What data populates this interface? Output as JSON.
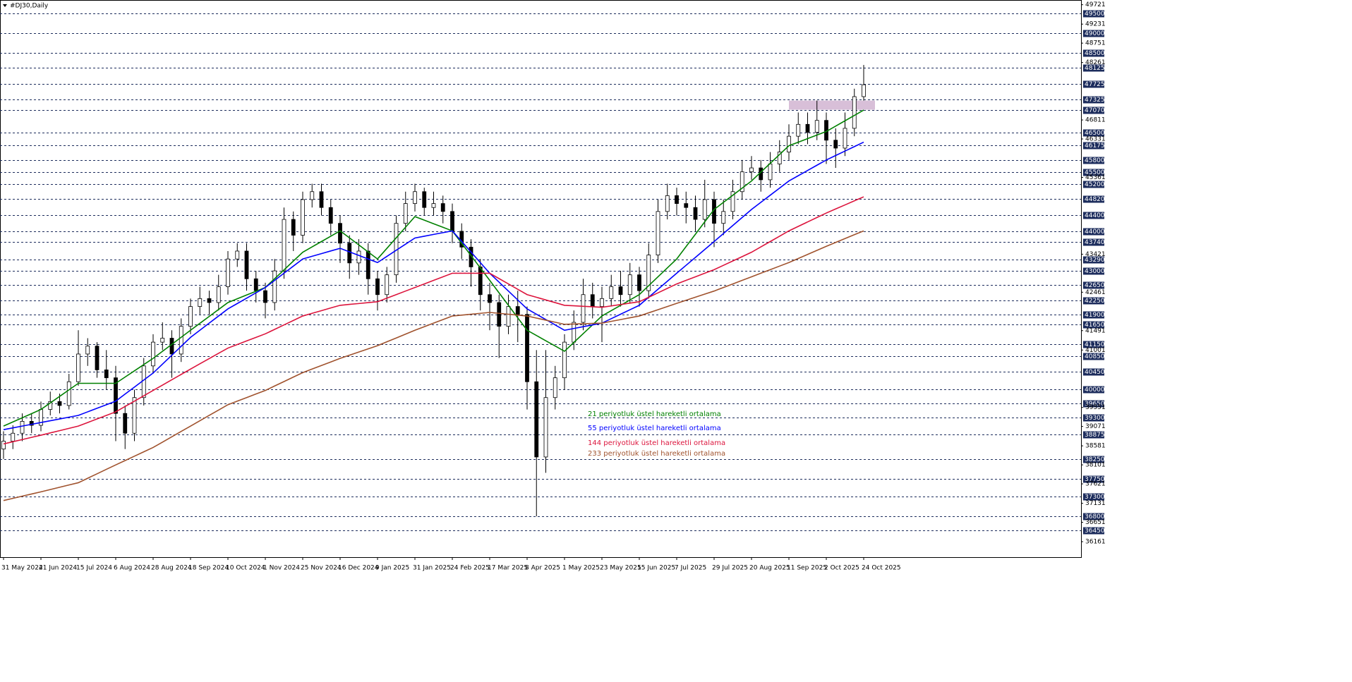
{
  "chart_data": {
    "type": "candlestick",
    "title": "#DJ30,Daily",
    "categories": [
      "31 May 2024",
      null,
      null,
      null,
      "21 Jun 2024",
      null,
      null,
      null,
      "15 Jul 2024",
      null,
      null,
      null,
      "6 Aug 2024",
      null,
      null,
      null,
      "28 Aug 2024",
      null,
      null,
      null,
      "18 Sep 2024",
      null,
      null,
      null,
      "10 Oct 2024",
      null,
      null,
      null,
      "1 Nov 2024",
      null,
      null,
      null,
      "25 Nov 2024",
      null,
      null,
      null,
      "16 Dec 2024",
      null,
      null,
      null,
      "9 Jan 2025",
      null,
      null,
      null,
      "31 Jan 2025",
      null,
      null,
      null,
      "24 Feb 2025",
      null,
      null,
      null,
      "17 Mar 2025",
      null,
      null,
      null,
      "8 Apr 2025",
      null,
      null,
      null,
      "1 May 2025",
      null,
      null,
      null,
      "23 May 2025",
      null,
      null,
      null,
      "15 Jun 2025",
      null,
      null,
      null,
      "7 Jul 2025",
      null,
      null,
      null,
      "29 Jul 2025",
      null,
      null,
      null,
      "20 Aug 2025",
      null,
      null,
      null,
      "11 Sep 2025",
      null,
      null,
      null,
      "2 Oct 2025",
      null,
      null,
      null,
      "24 Oct 2025"
    ],
    "open": [
      38500,
      38700,
      38900,
      39200,
      39100,
      39500,
      39700,
      39600,
      40200,
      40900,
      41100,
      40500,
      40300,
      39400,
      38900,
      39800,
      40600,
      41200,
      41300,
      40900,
      41600,
      42100,
      42300,
      42200,
      42600,
      43300,
      43500,
      42800,
      42500,
      42200,
      43000,
      44300,
      43900,
      44800,
      45000,
      44600,
      44200,
      43700,
      43200,
      43500,
      42800,
      42400,
      42900,
      44200,
      44700,
      45000,
      44600,
      44700,
      44500,
      44000,
      43600,
      43100,
      42400,
      42200,
      41600,
      42100,
      41900,
      40200,
      38300,
      39800,
      40300,
      41200,
      41700,
      42400,
      42100,
      42300,
      42600,
      42400,
      42900,
      42500,
      43400,
      44500,
      44900,
      44700,
      44600,
      44300,
      44800,
      44200,
      44500,
      45000,
      45500,
      45600,
      45300,
      45700,
      46000,
      46400,
      46700,
      46500,
      46800,
      46300,
      46100,
      46600,
      47400
    ],
    "high": [
      38950,
      39100,
      39400,
      39400,
      39700,
      39950,
      39900,
      40400,
      41500,
      41300,
      41200,
      41000,
      40600,
      39600,
      40000,
      40800,
      41400,
      41700,
      41500,
      41800,
      42300,
      42600,
      42500,
      42900,
      43500,
      43700,
      43700,
      43000,
      42700,
      43300,
      44600,
      44500,
      45000,
      45200,
      45200,
      44800,
      44400,
      43900,
      43800,
      43700,
      43000,
      43100,
      44400,
      45000,
      45200,
      45100,
      45000,
      44900,
      44700,
      44200,
      43800,
      43300,
      42700,
      42400,
      42400,
      42500,
      42100,
      41000,
      41000,
      40600,
      41400,
      42000,
      42800,
      42700,
      42600,
      42900,
      43000,
      43200,
      43100,
      43700,
      44800,
      45200,
      45100,
      45000,
      44900,
      45300,
      45000,
      44800,
      45300,
      45800,
      45900,
      45800,
      46000,
      46300,
      46700,
      47000,
      47000,
      47300,
      47000,
      46600,
      47000,
      47600,
      48200
    ],
    "low": [
      38250,
      38500,
      38700,
      38900,
      38950,
      39350,
      39400,
      39500,
      40100,
      40600,
      40300,
      40000,
      38700,
      38500,
      38700,
      39600,
      40400,
      41000,
      40300,
      40700,
      41400,
      41900,
      41900,
      42000,
      42400,
      43100,
      42500,
      42200,
      41800,
      42000,
      42800,
      43500,
      43700,
      44600,
      44400,
      43900,
      43200,
      42800,
      42900,
      42400,
      42000,
      42200,
      42700,
      44000,
      44500,
      44400,
      44400,
      44200,
      43700,
      43300,
      42600,
      42000,
      41500,
      40800,
      41400,
      41200,
      39500,
      36800,
      37900,
      39500,
      40000,
      41000,
      41500,
      41800,
      41200,
      42100,
      42100,
      42200,
      42100,
      42300,
      43200,
      44300,
      44400,
      44200,
      44000,
      44100,
      43600,
      43900,
      44300,
      44800,
      45300,
      45000,
      45100,
      45500,
      45800,
      46200,
      46200,
      46300,
      45700,
      45600,
      45900,
      46400,
      47300
    ],
    "close": [
      38700,
      38900,
      39200,
      39100,
      39500,
      39700,
      39600,
      40200,
      40900,
      41100,
      40500,
      40300,
      39400,
      38900,
      39800,
      40600,
      41200,
      41300,
      40900,
      41600,
      42100,
      42300,
      42200,
      42600,
      43300,
      43500,
      42800,
      42500,
      42200,
      43000,
      44300,
      43900,
      44800,
      45000,
      44600,
      44200,
      43700,
      43200,
      43500,
      42800,
      42400,
      42900,
      44200,
      44700,
      45000,
      44600,
      44700,
      44500,
      44000,
      43600,
      43100,
      42400,
      42200,
      41600,
      42100,
      41900,
      40200,
      38300,
      39800,
      40300,
      41200,
      41700,
      42400,
      42100,
      42300,
      42600,
      42400,
      42900,
      42500,
      43400,
      44500,
      44900,
      44700,
      44600,
      44300,
      44800,
      44200,
      44500,
      45000,
      45500,
      45600,
      45300,
      45700,
      46000,
      46400,
      46700,
      46500,
      46800,
      46300,
      46100,
      46600,
      47400,
      47700
    ],
    "series": [
      {
        "name": "21 periyotluk üstel hareketli ortalama",
        "color": "#008000",
        "values": [
          39080,
          39185,
          39290,
          39395,
          39500,
          39665,
          39830,
          39995,
          40160,
          40160,
          40160,
          40160,
          40160,
          40318,
          40475,
          40633,
          40790,
          40968,
          41145,
          41323,
          41500,
          41675,
          41850,
          42025,
          42200,
          42295,
          42390,
          42485,
          42580,
          42803,
          43025,
          43248,
          43470,
          43605,
          43740,
          43875,
          44010,
          43833,
          43655,
          43478,
          43300,
          43568,
          43835,
          44103,
          44370,
          44280,
          44190,
          44100,
          44010,
          43698,
          43385,
          43073,
          42760,
          42445,
          42130,
          41815,
          41500,
          41368,
          41235,
          41103,
          40970,
          41193,
          41415,
          41638,
          41860,
          41995,
          42130,
          42265,
          42400,
          42625,
          42850,
          43075,
          43300,
          43613,
          43925,
          44238,
          44550,
          44730,
          44910,
          45090,
          45270,
          45493,
          45715,
          45938,
          46160,
          46250,
          46340,
          46430,
          46520,
          46655,
          46790,
          46925,
          47060
        ]
      },
      {
        "name": "55 periyotluk üstel hareketli ortalama",
        "color": "#0000ff",
        "values": [
          38990,
          39035,
          39080,
          39125,
          39170,
          39215,
          39260,
          39305,
          39350,
          39440,
          39530,
          39620,
          39710,
          39888,
          40065,
          40243,
          40420,
          40645,
          40870,
          41095,
          41320,
          41500,
          41680,
          41860,
          42040,
          42175,
          42310,
          42445,
          42580,
          42760,
          42940,
          43120,
          43300,
          43368,
          43435,
          43503,
          43570,
          43480,
          43390,
          43300,
          43210,
          43365,
          43520,
          43675,
          43830,
          43875,
          43920,
          43965,
          44010,
          43743,
          43475,
          43208,
          42940,
          42715,
          42490,
          42265,
          42040,
          41905,
          41770,
          41635,
          41500,
          41545,
          41590,
          41635,
          41680,
          41793,
          41905,
          42018,
          42130,
          42333,
          42535,
          42738,
          42940,
          43140,
          43340,
          43540,
          43740,
          43943,
          44145,
          44348,
          44550,
          44730,
          44910,
          45090,
          45270,
          45403,
          45535,
          45668,
          45800,
          45913,
          46025,
          46138,
          46250
        ]
      },
      {
        "name": "144 periyotluk üstel hareketli ortalama",
        "color": "#dc143c",
        "values": [
          38630,
          38685,
          38740,
          38795,
          38850,
          38908,
          38965,
          39023,
          39080,
          39170,
          39260,
          39350,
          39440,
          39575,
          39710,
          39845,
          39980,
          40115,
          40250,
          40385,
          40520,
          40653,
          40785,
          40918,
          41050,
          41140,
          41230,
          41320,
          41410,
          41523,
          41635,
          41748,
          41860,
          41928,
          41995,
          42063,
          42130,
          42153,
          42175,
          42198,
          42220,
          42310,
          42400,
          42490,
          42580,
          42670,
          42760,
          42850,
          42940,
          42940,
          42940,
          42940,
          42940,
          42805,
          42670,
          42535,
          42400,
          42333,
          42265,
          42198,
          42130,
          42118,
          42105,
          42093,
          42080,
          42115,
          42150,
          42185,
          42220,
          42333,
          42445,
          42558,
          42670,
          42760,
          42850,
          42940,
          43030,
          43140,
          43250,
          43360,
          43470,
          43605,
          43740,
          43875,
          44010,
          44123,
          44235,
          44348,
          44460,
          44563,
          44665,
          44768,
          44870
        ]
      },
      {
        "name": "233 periyotluk üstel hareketli ortalama",
        "color": "#a0522d",
        "values": [
          37200,
          37255,
          37310,
          37365,
          37420,
          37478,
          37535,
          37593,
          37650,
          37763,
          37875,
          37988,
          38100,
          38210,
          38320,
          38430,
          38540,
          38675,
          38810,
          38945,
          39080,
          39215,
          39350,
          39485,
          39620,
          39710,
          39800,
          39890,
          39980,
          40093,
          40205,
          40318,
          40430,
          40520,
          40610,
          40700,
          40790,
          40870,
          40950,
          41030,
          41110,
          41208,
          41305,
          41403,
          41500,
          41590,
          41680,
          41770,
          41860,
          41883,
          41905,
          41928,
          41950,
          41928,
          41905,
          41883,
          41860,
          41808,
          41755,
          41703,
          41650,
          41658,
          41665,
          41673,
          41680,
          41725,
          41770,
          41815,
          41860,
          41940,
          42020,
          42100,
          42180,
          42258,
          42335,
          42413,
          42490,
          42580,
          42670,
          42760,
          42850,
          42940,
          43030,
          43120,
          43210,
          43313,
          43415,
          43518,
          43620,
          43718,
          43815,
          43913,
          44010
        ]
      }
    ],
    "ylim": [
      35770,
      49840
    ],
    "yticks": [
      49721,
      49231,
      48751,
      48261,
      46811,
      46331,
      45361,
      43421,
      42461,
      41491,
      41001,
      39551,
      39071,
      38581,
      38101,
      37621,
      37131,
      36651,
      36161
    ],
    "levels": [
      49500,
      49000,
      48500,
      48125,
      47725,
      47325,
      47070,
      46500,
      46175,
      45800,
      45500,
      45200,
      44820,
      44400,
      44000,
      43740,
      43290,
      43000,
      42650,
      42250,
      41900,
      41650,
      41150,
      40850,
      40450,
      40000,
      39650,
      39300,
      38875,
      38250,
      37750,
      37300,
      36800,
      36450
    ],
    "zone": {
      "ylim": [
        47070,
        47300
      ],
      "color": "#d8bfd8"
    },
    "candle_colors": {
      "up": "#ffffff",
      "down": "#000000",
      "edge": "#000000"
    },
    "grid": true
  }
}
